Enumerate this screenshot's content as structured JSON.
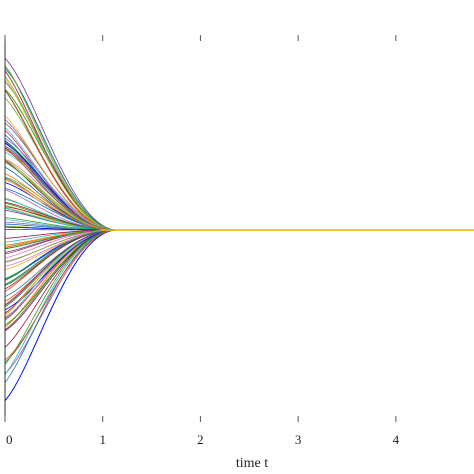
{
  "chart_data": {
    "type": "line",
    "title": "",
    "xlabel": "time t",
    "ylabel": "",
    "xlim": [
      0,
      4.8
    ],
    "ylim": [
      -1,
      1
    ],
    "x_ticks": [
      0,
      1,
      2,
      3,
      4
    ],
    "x_tick_labels": [
      "0",
      "1",
      "2",
      "3",
      "4"
    ],
    "grid": false,
    "legend": "none",
    "consensus_value": 0,
    "convergence_time": 1.15,
    "series_count": 120,
    "initial_value_range": [
      -0.9,
      0.95
    ],
    "highlighted_series_color": "#e8b400",
    "palette": [
      "#0072bd",
      "#d95319",
      "#edb120",
      "#7e2f8e",
      "#77ac30",
      "#4dbeee",
      "#a2142f",
      "#2ca02c",
      "#1f77b4",
      "#ff7f0e",
      "#8c564b",
      "#e377c2",
      "#17becf",
      "#bcbd22",
      "#d62728",
      "#9467bd",
      "#00a000",
      "#0000ff"
    ]
  }
}
